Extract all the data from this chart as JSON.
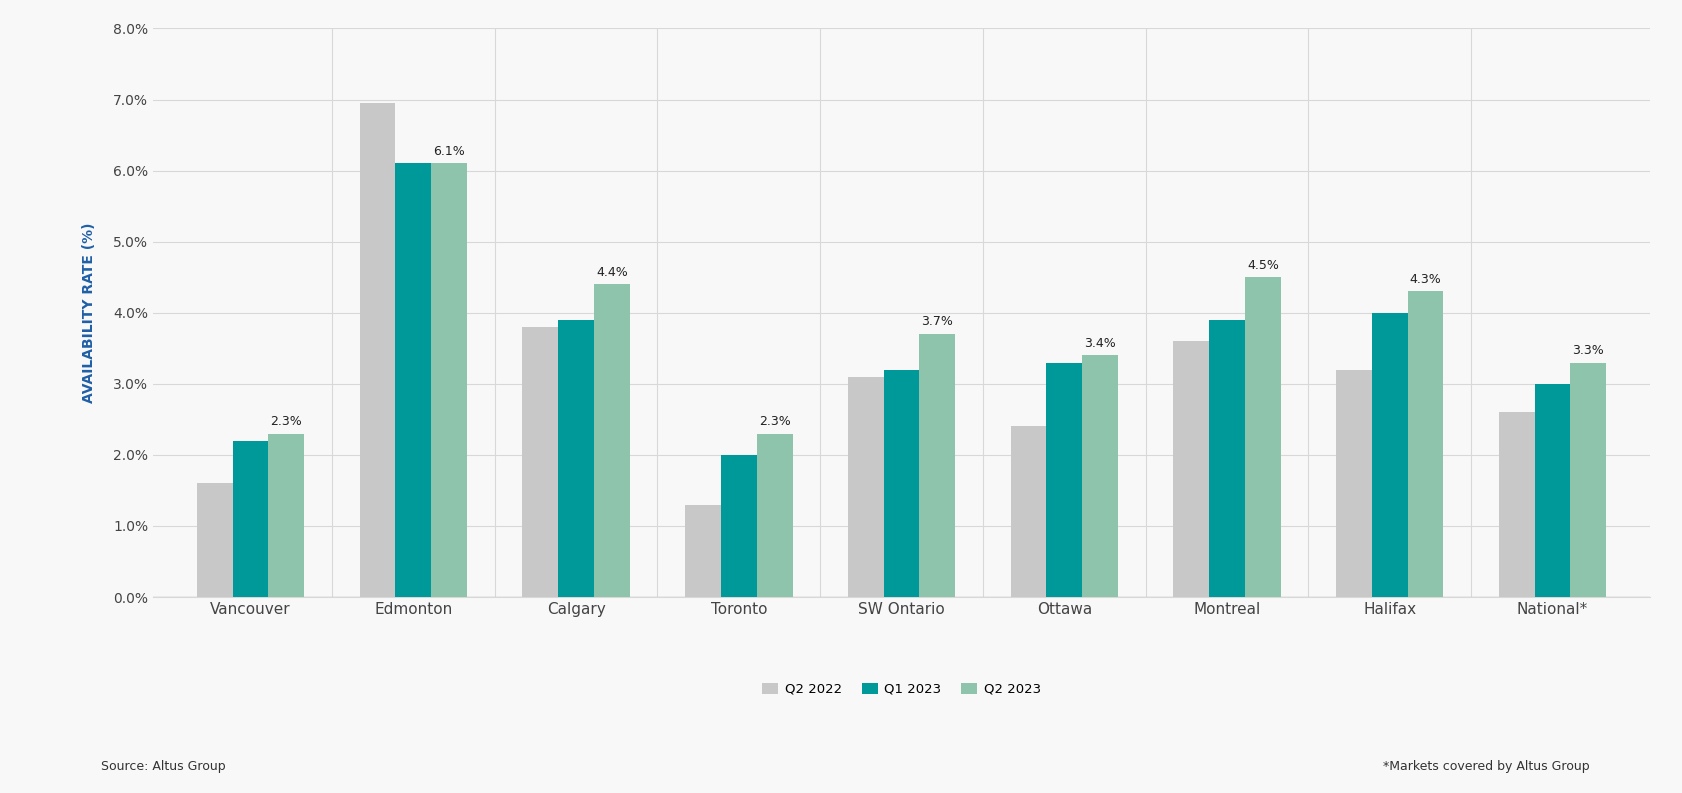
{
  "categories": [
    "Vancouver",
    "Edmonton",
    "Calgary",
    "Toronto",
    "SW Ontario",
    "Ottawa",
    "Montreal",
    "Halifax",
    "National*"
  ],
  "q2_2022": [
    1.6,
    6.95,
    3.8,
    1.3,
    3.1,
    2.4,
    3.6,
    3.2,
    2.6
  ],
  "q1_2023": [
    2.2,
    6.1,
    3.9,
    2.0,
    3.2,
    3.3,
    3.9,
    4.0,
    3.0
  ],
  "q2_2023": [
    2.3,
    6.1,
    4.4,
    2.3,
    3.7,
    3.4,
    4.5,
    4.3,
    3.3
  ],
  "q2_2023_labels": [
    "2.3%",
    "6.1%",
    "4.4%",
    "2.3%",
    "3.7%",
    "3.4%",
    "4.5%",
    "4.3%",
    "3.3%"
  ],
  "color_q2_2022": "#c8c8c8",
  "color_q1_2023": "#009999",
  "color_q2_2023": "#8ec4ab",
  "ylabel": "AVAILABILITY RATE (%)",
  "ylabel_color": "#1f5fa6",
  "ylim_max": 8,
  "ytick_values": [
    0,
    1,
    2,
    3,
    4,
    5,
    6,
    7,
    8
  ],
  "ytick_labels": [
    "0.0%",
    "1.0%",
    "2.0%",
    "3.0%",
    "4.0%",
    "5.0%",
    "6.0%",
    "7.0%",
    "8.0%"
  ],
  "legend_labels": [
    "Q2 2022",
    "Q1 2023",
    "Q2 2023"
  ],
  "source_text": "Source: Altus Group",
  "footnote_text": "*Markets covered by Altus Group",
  "background_color": "#f8f8f8",
  "bar_width": 0.22,
  "label_fontsize": 9,
  "axis_fontsize": 10,
  "ylabel_fontsize": 10,
  "legend_fontsize": 9.5,
  "xtick_fontsize": 11
}
